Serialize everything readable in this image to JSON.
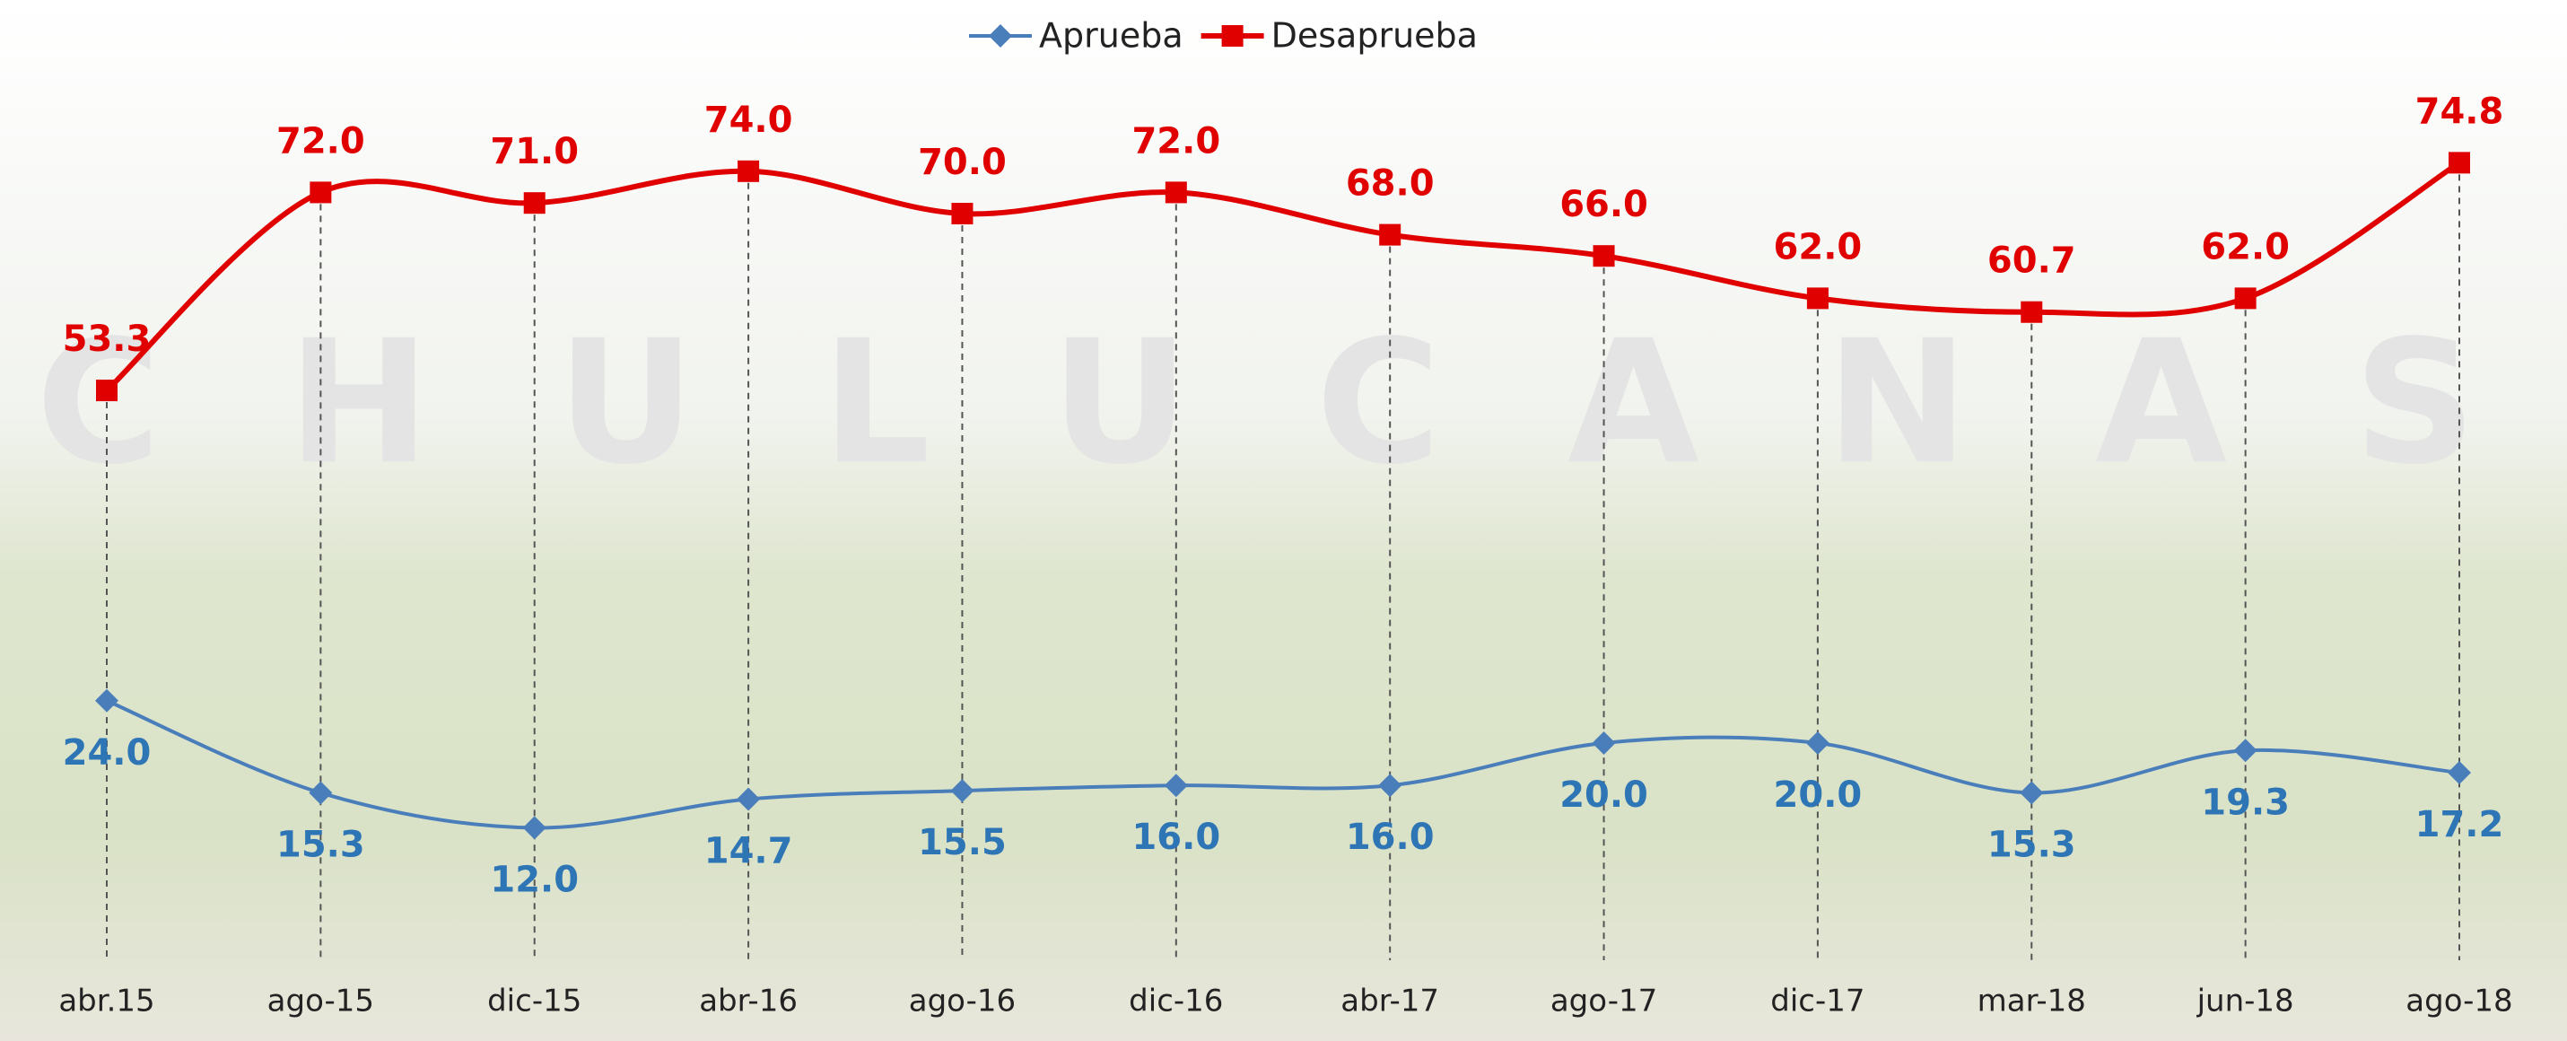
{
  "chart_data": {
    "type": "line",
    "watermark": "CHULUCANAS",
    "categories": [
      "abr.15",
      "ago-15",
      "dic-15",
      "abr-16",
      "ago-16",
      "dic-16",
      "abr-17",
      "ago-17",
      "dic-17",
      "mar-18",
      "jun-18",
      "ago-18"
    ],
    "series": [
      {
        "name": "Aprueba",
        "color": "#4a7ebb",
        "label_color": "#2e75b6",
        "marker": "diamond",
        "values": [
          24,
          15.3,
          12,
          14.7,
          15.5,
          16,
          16,
          20,
          20,
          15.3,
          19.3,
          17.2
        ],
        "value_labels": [
          "24.0",
          "15.3",
          "12.0",
          "14.7",
          "15.5",
          "16.0",
          "16.0",
          "20.0",
          "20.0",
          "15.3",
          "19.3",
          "17.2"
        ]
      },
      {
        "name": "Desaprueba",
        "color": "#e00000",
        "label_color": "#e00000",
        "marker": "square",
        "values": [
          53.3,
          72,
          71,
          74,
          70,
          72,
          68,
          66,
          62,
          60.7,
          62,
          74.8
        ],
        "value_labels": [
          "53.3",
          "72.0",
          "71.0",
          "74.0",
          "70.0",
          "72.0",
          "68.0",
          "66.0",
          "62.0",
          "60.7",
          "62.0",
          "74.8"
        ]
      }
    ],
    "legend": "top"
  }
}
